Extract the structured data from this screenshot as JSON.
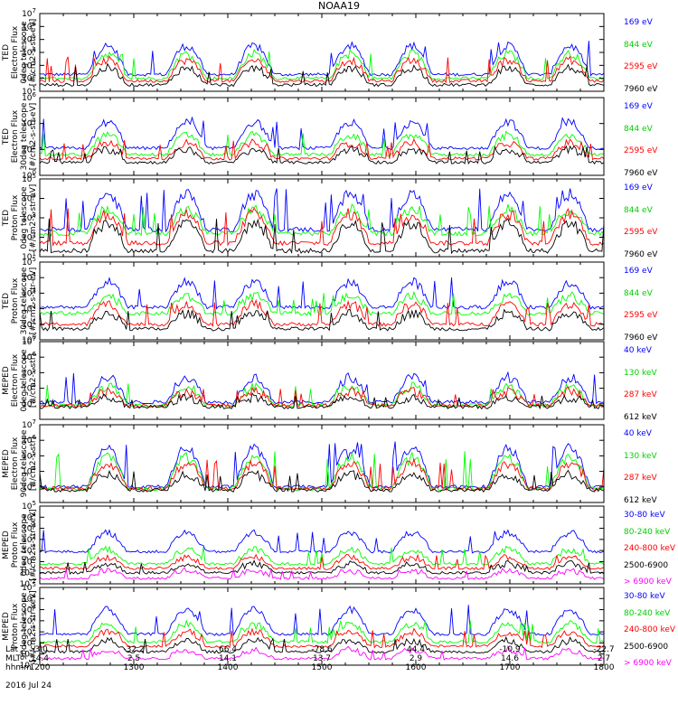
{
  "title": "NOAA19",
  "footer": {
    "row_labels": [
      "Lat",
      "MLT",
      "hhmm"
    ],
    "date": "2016 Jul 24",
    "columns": [
      {
        "lat": "-3.0",
        "mlt": "14.4",
        "hhmm": "1200"
      },
      {
        "lat": "-32.2",
        "mlt": "2.5",
        "hhmm": "1300"
      },
      {
        "lat": "66.4",
        "mlt": "14.1",
        "hhmm": "1400"
      },
      {
        "lat": "-78.6",
        "mlt": "13.7",
        "hhmm": "1500"
      },
      {
        "lat": "44.4",
        "mlt": "2.9",
        "hhmm": "1600"
      },
      {
        "lat": "-10.9",
        "mlt": "14.6",
        "hhmm": "1700"
      },
      {
        "lat": "-22.7",
        "mlt": "2.7",
        "hhmm": "1800"
      }
    ]
  },
  "chart_data": [
    {
      "type": "line",
      "ylabel": [
        "TED",
        "Electron Flux",
        "0deg telescope",
        "[#/cm2-s-str-eV]"
      ],
      "yscale": "log",
      "ylim_exp": [
        1,
        7
      ],
      "ytick_exponents": [
        1,
        2,
        3,
        4,
        5,
        6,
        7
      ],
      "xlim": [
        "1200",
        "1800"
      ],
      "series": [
        {
          "name": "7960 eV",
          "color": "#000000",
          "base": 1.5,
          "amp": 1.3
        },
        {
          "name": "2595 eV",
          "color": "#ff0000",
          "base": 1.8,
          "amp": 1.6
        },
        {
          "name": "844 eV",
          "color": "#00ff00",
          "base": 2.0,
          "amp": 1.9
        },
        {
          "name": "169 eV",
          "color": "#0000ff",
          "base": 2.3,
          "amp": 2.2
        }
      ]
    },
    {
      "type": "line",
      "ylabel": [
        "TED",
        "Electron Flux",
        "30deg telescope",
        "[#/cm2-s-str-eV]"
      ],
      "yscale": "log",
      "ylim_exp": [
        0,
        6
      ],
      "ytick_exponents": [
        0,
        2,
        4,
        6
      ],
      "xlim": [
        "1200",
        "1800"
      ],
      "series": [
        {
          "name": "7960 eV",
          "color": "#000000",
          "base": 1.0,
          "amp": 1.0
        },
        {
          "name": "2595 eV",
          "color": "#ff0000",
          "base": 1.3,
          "amp": 1.2
        },
        {
          "name": "844 eV",
          "color": "#00ff00",
          "base": 1.6,
          "amp": 1.5
        },
        {
          "name": "169 eV",
          "color": "#0000ff",
          "base": 2.1,
          "amp": 2.0
        }
      ]
    },
    {
      "type": "line",
      "ylabel": [
        "TED",
        "Proton Flux",
        "0deg telescope",
        "[#/cm2-s-str-eV]"
      ],
      "yscale": "log",
      "ylim_exp": [
        1,
        5
      ],
      "ytick_exponents": [
        1,
        2,
        3,
        4,
        5
      ],
      "xlim": [
        "1200",
        "1800"
      ],
      "series": [
        {
          "name": "7960 eV",
          "color": "#000000",
          "base": 1.3,
          "amp": 1.4
        },
        {
          "name": "2595 eV",
          "color": "#ff0000",
          "base": 1.7,
          "amp": 1.5
        },
        {
          "name": "844 eV",
          "color": "#00ff00",
          "base": 2.2,
          "amp": 1.2
        },
        {
          "name": "169 eV",
          "color": "#0000ff",
          "base": 2.4,
          "amp": 1.8
        }
      ]
    },
    {
      "type": "line",
      "ylabel": [
        "TED",
        "Proton Flux",
        "30deg telescope",
        "[#/cm2-s-str-eV]"
      ],
      "yscale": "log",
      "ylim_exp": [
        0,
        5
      ],
      "ytick_exponents": [
        0,
        1,
        2,
        3,
        4,
        5
      ],
      "xlim": [
        "1200",
        "1800"
      ],
      "series": [
        {
          "name": "7960 eV",
          "color": "#000000",
          "base": 0.7,
          "amp": 1.0
        },
        {
          "name": "2595 eV",
          "color": "#ff0000",
          "base": 1.0,
          "amp": 1.3
        },
        {
          "name": "844 eV",
          "color": "#00ff00",
          "base": 1.7,
          "amp": 1.1
        },
        {
          "name": "169 eV",
          "color": "#0000ff",
          "base": 2.1,
          "amp": 1.6
        }
      ]
    },
    {
      "type": "line",
      "ylabel": [
        "MEPED",
        "Electron Flux",
        "0deg telescope",
        "[#/cm2-s-str]"
      ],
      "yscale": "log",
      "ylim_exp": [
        2,
        7
      ],
      "ytick_exponents": [
        3,
        4,
        5,
        6,
        7
      ],
      "xlim": [
        "1200",
        "1800"
      ],
      "series": [
        {
          "name": "612 keV",
          "color": "#000000",
          "base": 2.8,
          "amp": 0.6
        },
        {
          "name": "287 keV",
          "color": "#ff0000",
          "base": 2.9,
          "amp": 0.9
        },
        {
          "name": "130 keV",
          "color": "#00ff00",
          "base": 2.9,
          "amp": 1.2
        },
        {
          "name": "40 keV",
          "color": "#0000ff",
          "base": 3.1,
          "amp": 1.6
        }
      ]
    },
    {
      "type": "line",
      "ylabel": [
        "MEPED",
        "Electron Flux",
        "90deg telescope",
        "[#/cm2-s-str]"
      ],
      "yscale": "log",
      "ylim_exp": [
        2,
        7
      ],
      "ytick_exponents": [
        3,
        4,
        5,
        6,
        7
      ],
      "xlim": [
        "1200",
        "1800"
      ],
      "series": [
        {
          "name": "612 keV",
          "color": "#000000",
          "base": 2.8,
          "amp": 1.0
        },
        {
          "name": "287 keV",
          "color": "#ff0000",
          "base": 2.9,
          "amp": 1.6
        },
        {
          "name": "130 keV",
          "color": "#00ff00",
          "base": 2.9,
          "amp": 2.0
        },
        {
          "name": "40 keV",
          "color": "#0000ff",
          "base": 3.0,
          "amp": 2.5
        }
      ]
    },
    {
      "type": "line",
      "ylabel": [
        "MEPED",
        "Proton Flux",
        "0deg telescope",
        "[#/cm2-s-str-keV]"
      ],
      "yscale": "log",
      "ylim_exp": [
        -2,
        5
      ],
      "ytick_exponents": [
        -2,
        -1,
        0,
        1,
        2,
        3,
        4,
        5
      ],
      "xlim": [
        "1200",
        "1800"
      ],
      "series": [
        {
          "name": "> 6900 keV",
          "color": "#ff00ff",
          "base": -1.5,
          "amp": 0.7
        },
        {
          "name": "2500-6900",
          "color": "#000000",
          "base": -1.0,
          "amp": 0.8
        },
        {
          "name": "240-800 keV",
          "color": "#ff0000",
          "base": -0.6,
          "amp": 1.0
        },
        {
          "name": "80-240 keV",
          "color": "#00ff00",
          "base": -0.2,
          "amp": 1.3
        },
        {
          "name": "30-80 keV",
          "color": "#0000ff",
          "base": 0.9,
          "amp": 1.7
        }
      ]
    },
    {
      "type": "line",
      "ylabel": [
        "MEPED",
        "Proton Flux",
        "90deg telescope",
        "[#/cm2-s-str-keV]"
      ],
      "yscale": "log",
      "ylim_exp": [
        -2,
        5
      ],
      "ytick_exponents": [
        -2,
        -1,
        0,
        1,
        2,
        3,
        4,
        5
      ],
      "xlim": [
        "1200",
        "1800"
      ],
      "series": [
        {
          "name": "> 6900 keV",
          "color": "#ff00ff",
          "base": -1.4,
          "amp": 0.8
        },
        {
          "name": "2500-6900",
          "color": "#000000",
          "base": -0.8,
          "amp": 1.0
        },
        {
          "name": "240-800 keV",
          "color": "#ff0000",
          "base": -0.3,
          "amp": 1.3
        },
        {
          "name": "80-240 keV",
          "color": "#00ff00",
          "base": 0.1,
          "amp": 1.6
        },
        {
          "name": "30-80 keV",
          "color": "#0000ff",
          "base": 0.8,
          "amp": 2.2
        }
      ]
    }
  ]
}
